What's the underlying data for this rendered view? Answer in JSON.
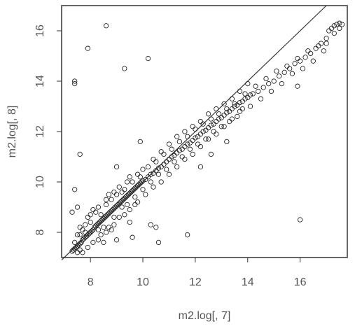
{
  "chart_data": {
    "type": "scatter",
    "title": "",
    "xlabel": "m2.log[, 7]",
    "ylabel": "m2.log[, 8]",
    "xlim": [
      6.9,
      17.8
    ],
    "ylim": [
      7.0,
      17.0
    ],
    "x_ticks": [
      8,
      10,
      12,
      14,
      16
    ],
    "y_ticks": [
      8,
      10,
      12,
      14,
      16
    ],
    "grid": false,
    "marker": "open-circle",
    "reference_line": {
      "label": "",
      "slope": 1,
      "intercept": 0
    },
    "colors": {
      "points": "#222222",
      "axes": "#333333",
      "text": "#555555",
      "reference_line": "#333333"
    },
    "series": [
      {
        "name": "",
        "points": [
          [
            7.3,
            7.25
          ],
          [
            7.35,
            7.3
          ],
          [
            7.4,
            7.35
          ],
          [
            7.45,
            7.4
          ],
          [
            7.5,
            7.45
          ],
          [
            7.55,
            7.5
          ],
          [
            7.6,
            7.55
          ],
          [
            7.65,
            7.6
          ],
          [
            7.7,
            7.7
          ],
          [
            7.75,
            7.75
          ],
          [
            7.8,
            7.8
          ],
          [
            7.85,
            7.85
          ],
          [
            7.9,
            7.9
          ],
          [
            7.95,
            7.95
          ],
          [
            8.0,
            8.0
          ],
          [
            8.05,
            8.05
          ],
          [
            8.1,
            8.1
          ],
          [
            8.15,
            8.2
          ],
          [
            8.2,
            8.25
          ],
          [
            8.25,
            8.3
          ],
          [
            8.3,
            8.35
          ],
          [
            8.35,
            8.4
          ],
          [
            8.4,
            8.45
          ],
          [
            8.45,
            8.5
          ],
          [
            8.5,
            8.55
          ],
          [
            8.55,
            8.6
          ],
          [
            8.6,
            8.65
          ],
          [
            8.65,
            8.7
          ],
          [
            8.7,
            8.75
          ],
          [
            8.75,
            8.8
          ],
          [
            8.8,
            8.85
          ],
          [
            8.85,
            8.9
          ],
          [
            8.9,
            8.95
          ],
          [
            8.95,
            9.0
          ],
          [
            9.0,
            9.05
          ],
          [
            9.05,
            9.1
          ],
          [
            9.1,
            9.15
          ],
          [
            9.15,
            9.2
          ],
          [
            9.2,
            9.25
          ],
          [
            9.25,
            9.3
          ],
          [
            9.3,
            9.35
          ],
          [
            9.35,
            9.4
          ],
          [
            9.4,
            9.45
          ],
          [
            9.45,
            9.5
          ],
          [
            9.5,
            9.55
          ],
          [
            9.55,
            9.6
          ],
          [
            9.6,
            9.65
          ],
          [
            9.65,
            9.7
          ],
          [
            9.7,
            9.75
          ],
          [
            9.75,
            9.8
          ],
          [
            9.8,
            9.85
          ],
          [
            9.85,
            9.9
          ],
          [
            9.9,
            9.95
          ],
          [
            9.95,
            10.0
          ],
          [
            10.0,
            10.05
          ],
          [
            10.1,
            10.1
          ],
          [
            10.2,
            10.2
          ],
          [
            10.3,
            10.3
          ],
          [
            10.4,
            10.35
          ],
          [
            10.5,
            10.45
          ],
          [
            10.6,
            10.55
          ],
          [
            10.7,
            10.6
          ],
          [
            10.8,
            10.7
          ],
          [
            10.9,
            10.8
          ],
          [
            11.0,
            10.9
          ],
          [
            11.1,
            11.0
          ],
          [
            11.2,
            11.05
          ],
          [
            11.3,
            11.15
          ],
          [
            11.4,
            11.25
          ],
          [
            11.5,
            11.3
          ],
          [
            11.6,
            11.4
          ],
          [
            11.7,
            11.5
          ],
          [
            11.8,
            11.55
          ],
          [
            11.9,
            11.65
          ],
          [
            12.0,
            11.75
          ],
          [
            12.1,
            11.8
          ],
          [
            12.2,
            11.9
          ],
          [
            12.3,
            12.0
          ],
          [
            12.4,
            12.05
          ],
          [
            12.5,
            12.15
          ],
          [
            12.6,
            12.25
          ],
          [
            12.7,
            12.3
          ],
          [
            12.8,
            12.4
          ],
          [
            12.9,
            12.5
          ],
          [
            13.0,
            12.55
          ],
          [
            13.1,
            12.65
          ],
          [
            13.2,
            12.75
          ],
          [
            13.3,
            12.8
          ],
          [
            13.4,
            12.9
          ],
          [
            13.5,
            13.0
          ],
          [
            13.6,
            13.05
          ],
          [
            13.7,
            13.15
          ],
          [
            13.8,
            13.2
          ],
          [
            13.9,
            13.3
          ],
          [
            14.0,
            13.35
          ],
          [
            14.1,
            13.45
          ],
          [
            14.2,
            13.5
          ],
          [
            14.4,
            13.6
          ],
          [
            14.6,
            13.75
          ],
          [
            14.8,
            13.9
          ],
          [
            15.0,
            14.0
          ],
          [
            15.2,
            14.2
          ],
          [
            15.4,
            14.35
          ],
          [
            15.6,
            14.5
          ],
          [
            15.8,
            14.7
          ],
          [
            16.0,
            14.8
          ],
          [
            16.2,
            14.95
          ],
          [
            16.4,
            15.1
          ],
          [
            16.6,
            15.3
          ],
          [
            16.8,
            15.5
          ],
          [
            17.0,
            15.7
          ],
          [
            17.1,
            16.0
          ],
          [
            17.2,
            16.1
          ],
          [
            17.3,
            16.2
          ],
          [
            17.4,
            16.25
          ],
          [
            17.5,
            16.3
          ],
          [
            17.6,
            16.25
          ],
          [
            17.3,
            15.9
          ],
          [
            17.5,
            16.1
          ],
          [
            7.6,
            7.9
          ],
          [
            7.8,
            8.3
          ],
          [
            7.7,
            8.1
          ],
          [
            7.9,
            8.6
          ],
          [
            8.0,
            8.4
          ],
          [
            8.2,
            8.8
          ],
          [
            8.3,
            8.1
          ],
          [
            8.5,
            8.2
          ],
          [
            8.6,
            9.1
          ],
          [
            8.8,
            9.3
          ],
          [
            8.9,
            8.6
          ],
          [
            9.0,
            9.5
          ],
          [
            9.2,
            9.0
          ],
          [
            9.3,
            9.7
          ],
          [
            9.4,
            9.1
          ],
          [
            9.6,
            10.0
          ],
          [
            9.7,
            9.4
          ],
          [
            9.9,
            10.2
          ],
          [
            10.0,
            9.7
          ],
          [
            10.2,
            10.6
          ],
          [
            10.3,
            10.0
          ],
          [
            10.5,
            10.8
          ],
          [
            10.6,
            10.3
          ],
          [
            10.8,
            11.1
          ],
          [
            10.9,
            10.5
          ],
          [
            11.1,
            11.3
          ],
          [
            11.2,
            10.8
          ],
          [
            11.4,
            11.6
          ],
          [
            11.5,
            11.0
          ],
          [
            11.7,
            11.8
          ],
          [
            11.8,
            11.3
          ],
          [
            12.0,
            12.1
          ],
          [
            12.1,
            11.5
          ],
          [
            12.3,
            12.3
          ],
          [
            12.4,
            11.7
          ],
          [
            12.6,
            12.5
          ],
          [
            12.7,
            12.0
          ],
          [
            12.9,
            12.7
          ],
          [
            13.0,
            12.2
          ],
          [
            13.2,
            12.9
          ],
          [
            13.3,
            12.4
          ],
          [
            13.5,
            13.1
          ],
          [
            13.7,
            12.8
          ],
          [
            13.9,
            13.5
          ],
          [
            14.1,
            13.0
          ],
          [
            14.3,
            13.8
          ],
          [
            14.5,
            13.3
          ],
          [
            14.7,
            14.1
          ],
          [
            14.9,
            13.6
          ],
          [
            15.1,
            14.4
          ],
          [
            15.3,
            13.9
          ],
          [
            15.5,
            14.6
          ],
          [
            15.7,
            14.3
          ],
          [
            15.9,
            14.9
          ],
          [
            16.1,
            14.5
          ],
          [
            16.3,
            15.2
          ],
          [
            16.5,
            14.8
          ],
          [
            16.7,
            15.4
          ],
          [
            16.9,
            15.2
          ],
          [
            17.0,
            15.5
          ],
          [
            7.5,
            7.2
          ],
          [
            7.6,
            7.3
          ],
          [
            7.7,
            7.2
          ],
          [
            7.9,
            7.4
          ],
          [
            8.1,
            7.6
          ],
          [
            8.3,
            7.7
          ],
          [
            8.4,
            7.9
          ],
          [
            8.6,
            8.0
          ],
          [
            8.7,
            8.2
          ],
          [
            8.9,
            8.3
          ],
          [
            9.1,
            8.6
          ],
          [
            9.3,
            8.7
          ],
          [
            9.5,
            8.9
          ],
          [
            9.7,
            9.1
          ],
          [
            9.8,
            9.2
          ],
          [
            10.1,
            9.5
          ],
          [
            10.4,
            9.8
          ],
          [
            10.7,
            10.0
          ],
          [
            11.0,
            10.3
          ],
          [
            11.3,
            10.6
          ],
          [
            11.6,
            10.9
          ],
          [
            11.9,
            11.1
          ],
          [
            12.2,
            11.4
          ],
          [
            12.5,
            11.7
          ],
          [
            12.8,
            11.9
          ],
          [
            13.1,
            12.2
          ],
          [
            13.4,
            12.5
          ],
          [
            13.6,
            12.6
          ],
          [
            13.8,
            12.9
          ],
          [
            7.4,
            7.6
          ],
          [
            7.5,
            7.9
          ],
          [
            7.6,
            8.2
          ],
          [
            7.8,
            8.0
          ],
          [
            8.0,
            8.7
          ],
          [
            8.1,
            8.9
          ],
          [
            8.3,
            9.0
          ],
          [
            8.4,
            8.7
          ],
          [
            8.6,
            9.3
          ],
          [
            8.7,
            9.5
          ],
          [
            8.9,
            9.6
          ],
          [
            9.1,
            9.8
          ],
          [
            9.2,
            9.6
          ],
          [
            9.4,
            10.0
          ],
          [
            9.5,
            10.2
          ],
          [
            9.8,
            10.3
          ],
          [
            10.0,
            10.5
          ],
          [
            10.4,
            10.9
          ],
          [
            10.7,
            11.2
          ],
          [
            11.0,
            11.5
          ],
          [
            11.3,
            11.8
          ],
          [
            11.6,
            12.0
          ],
          [
            11.9,
            12.2
          ],
          [
            12.2,
            12.4
          ],
          [
            12.5,
            12.7
          ],
          [
            12.8,
            12.9
          ],
          [
            13.1,
            13.1
          ],
          [
            13.4,
            13.3
          ],
          [
            13.7,
            13.6
          ],
          [
            14.0,
            13.9
          ],
          [
            7.4,
            14.0
          ],
          [
            7.4,
            13.9
          ],
          [
            8.6,
            16.2
          ],
          [
            7.9,
            15.3
          ],
          [
            9.3,
            14.5
          ],
          [
            10.2,
            14.9
          ],
          [
            7.6,
            11.1
          ],
          [
            7.4,
            9.7
          ],
          [
            7.3,
            8.8
          ],
          [
            7.5,
            9.0
          ],
          [
            9.9,
            11.6
          ],
          [
            9.0,
            10.6
          ],
          [
            16.0,
            8.5
          ],
          [
            11.7,
            7.9
          ],
          [
            10.6,
            7.6
          ],
          [
            10.3,
            8.3
          ],
          [
            10.5,
            8.2
          ],
          [
            9.6,
            7.8
          ],
          [
            9.0,
            7.7
          ],
          [
            8.5,
            7.6
          ],
          [
            8.8,
            8.1
          ],
          [
            9.5,
            8.4
          ],
          [
            12.2,
            10.6
          ],
          [
            12.6,
            11.1
          ],
          [
            13.2,
            11.6
          ],
          [
            15.9,
            13.8
          ]
        ]
      }
    ]
  }
}
